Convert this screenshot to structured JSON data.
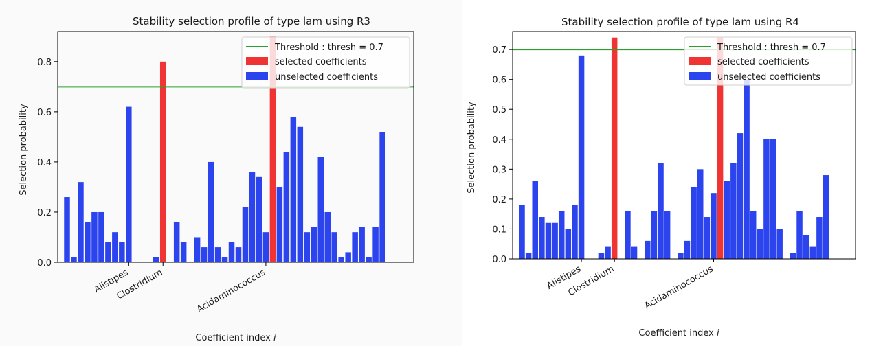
{
  "chart_data": [
    {
      "type": "bar",
      "title": "Stability selection profile of type lam using R3",
      "xlabel": "Coefficient index i",
      "xlabel_text": "Coefficient index ",
      "xlabel_var": "i",
      "ylabel": "Selection probability",
      "ylim": [
        0,
        0.92
      ],
      "yticks": [
        "0.0",
        "0.2",
        "0.4",
        "0.6",
        "0.8"
      ],
      "grid": false,
      "legend_position": "top-right",
      "threshold": 0.7,
      "legend": {
        "threshold": "Threshold : thresh = 0.7",
        "selected": "selected coefficients",
        "unselected": "unselected coefficients"
      },
      "colors": {
        "threshold": "#2ca02c",
        "selected": "#f03434",
        "unselected": "#2b44ee"
      },
      "xtick_labels": [
        {
          "label": "Alistipes",
          "index": 9
        },
        {
          "label": "Clostridium",
          "index": 14
        },
        {
          "label": "Acidaminococcus",
          "index": 29
        }
      ],
      "values": [
        0.26,
        0.02,
        0.32,
        0.16,
        0.2,
        0.2,
        0.08,
        0.12,
        0.08,
        0.62,
        0,
        0,
        0,
        0.02,
        0.8,
        0,
        0.16,
        0.08,
        0,
        0.1,
        0.06,
        0.4,
        0.06,
        0.02,
        0.08,
        0.06,
        0.22,
        0.36,
        0.34,
        0.12,
        0.9,
        0.3,
        0.44,
        0.58,
        0.54,
        0.12,
        0.14,
        0.42,
        0.2,
        0.12,
        0.02,
        0.04,
        0.12,
        0.14,
        0.02,
        0.14,
        0.52
      ],
      "selected_indices": [
        14,
        30
      ]
    },
    {
      "type": "bar",
      "title": "Stability selection profile of type lam using R4",
      "xlabel": "Coefficient index i",
      "xlabel_text": "Coefficient index ",
      "xlabel_var": "i",
      "ylabel": "Selection probability",
      "ylim": [
        0,
        0.76
      ],
      "yticks": [
        "0.0",
        "0.1",
        "0.2",
        "0.3",
        "0.4",
        "0.5",
        "0.6",
        "0.7"
      ],
      "grid": false,
      "legend_position": "top-right",
      "threshold": 0.7,
      "legend": {
        "threshold": "Threshold : thresh = 0.7",
        "selected": "selected coefficients",
        "unselected": "unselected coefficients"
      },
      "colors": {
        "threshold": "#2ca02c",
        "selected": "#f03434",
        "unselected": "#2b44ee"
      },
      "xtick_labels": [
        {
          "label": "Alistipes",
          "index": 9
        },
        {
          "label": "Clostridium",
          "index": 14
        },
        {
          "label": "Acidaminococcus",
          "index": 29
        }
      ],
      "values": [
        0.18,
        0.02,
        0.26,
        0.14,
        0.12,
        0.12,
        0.16,
        0.1,
        0.18,
        0.68,
        0,
        0,
        0.02,
        0.04,
        0.74,
        0,
        0.16,
        0.04,
        0,
        0.06,
        0.16,
        0.32,
        0.16,
        0,
        0.02,
        0.06,
        0.24,
        0.3,
        0.14,
        0.22,
        0.74,
        0.26,
        0.32,
        0.42,
        0.6,
        0.16,
        0.1,
        0.4,
        0.4,
        0.1,
        0,
        0.02,
        0.16,
        0.08,
        0.04,
        0.14,
        0.28
      ],
      "selected_indices": [
        14,
        30
      ]
    }
  ]
}
